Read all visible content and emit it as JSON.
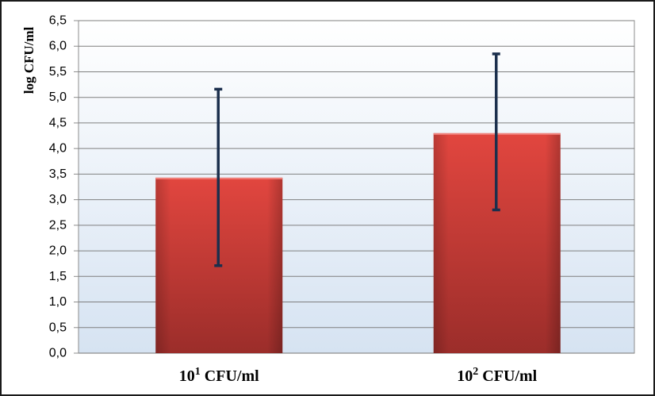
{
  "chart_data": {
    "type": "bar",
    "title": "",
    "xlabel": "",
    "ylabel": "log CFU/ml",
    "categories": [
      {
        "base": "10",
        "sup": "1",
        "unit": " CFU/ml"
      },
      {
        "base": "10",
        "sup": "2",
        "unit": " CFU/ml"
      }
    ],
    "values": [
      3.43,
      4.3
    ],
    "error_low": [
      1.71,
      2.8
    ],
    "error_high": [
      5.16,
      5.85
    ],
    "ylim": [
      0,
      6.5
    ],
    "yticks": [
      "0,0",
      "0,5",
      "1,0",
      "1,5",
      "2,0",
      "2,5",
      "3,0",
      "3,5",
      "4,0",
      "4,5",
      "5,0",
      "5,5",
      "6,0",
      "6,5"
    ],
    "grid": true,
    "legend": "none",
    "colors": {
      "bar_top": "#e2463f",
      "bar_bottom": "#9b2d2a",
      "error_bar": "#1b2f4d",
      "plot_bg_top": "#ffffff",
      "plot_bg_bottom": "#d6e3f2",
      "grid": "#7f7f7f"
    }
  }
}
